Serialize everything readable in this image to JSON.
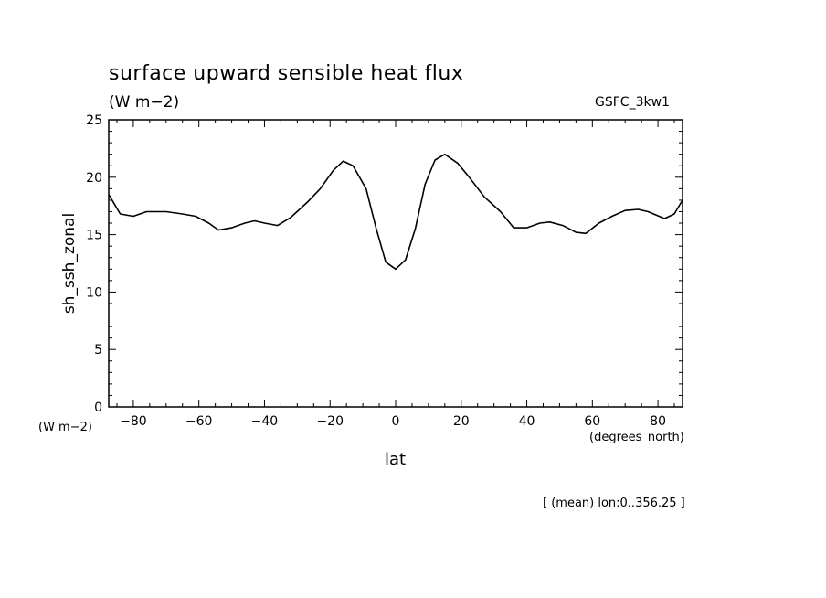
{
  "chart_data": {
    "type": "line",
    "title": "surface upward sensible heat flux",
    "units": "(W m−2)",
    "model_label": "GSFC_3kw1",
    "ylabel": "sh_ssh_zonal",
    "yunits": "(W m−2)",
    "xlabel": "lat",
    "xunits": "(degrees_north)",
    "footnote": "[ (mean) lon:0..356.25 ]",
    "xlim": [
      -87.5,
      87.5
    ],
    "ylim": [
      0,
      25
    ],
    "xticks": [
      -80,
      -60,
      -40,
      -20,
      0,
      20,
      40,
      60,
      80
    ],
    "xtick_labels": [
      "−80",
      "−60",
      "−40",
      "−20",
      "0",
      "20",
      "40",
      "60",
      "80"
    ],
    "yticks": [
      0,
      5,
      10,
      15,
      20,
      25
    ],
    "ytick_labels": [
      "0",
      "5",
      "10",
      "15",
      "20",
      "25"
    ],
    "grid": false,
    "series": [
      {
        "x": [
          -87.5,
          -84,
          -80,
          -76,
          -70,
          -65,
          -61,
          -57,
          -54,
          -50,
          -46,
          -43,
          -40,
          -36,
          -32,
          -27,
          -23,
          -19,
          -16,
          -13,
          -9,
          -6,
          -3,
          0,
          3,
          6,
          9,
          12,
          15,
          19,
          23,
          27,
          32,
          36,
          40,
          44,
          47,
          51,
          55,
          58,
          62,
          66,
          70,
          74,
          77,
          82,
          85,
          87.5
        ],
        "y": [
          18.5,
          16.8,
          16.6,
          17.0,
          17.0,
          16.8,
          16.6,
          16.0,
          15.4,
          15.6,
          16.0,
          16.2,
          16.0,
          15.8,
          16.5,
          17.8,
          19.0,
          20.6,
          21.4,
          21.0,
          19.0,
          15.6,
          12.6,
          12.0,
          12.8,
          15.5,
          19.4,
          21.5,
          22.0,
          21.2,
          19.8,
          18.3,
          17.0,
          15.6,
          15.6,
          16.0,
          16.1,
          15.8,
          15.2,
          15.1,
          16.0,
          16.6,
          17.1,
          17.2,
          17.0,
          16.4,
          16.8,
          18.0
        ]
      }
    ]
  }
}
